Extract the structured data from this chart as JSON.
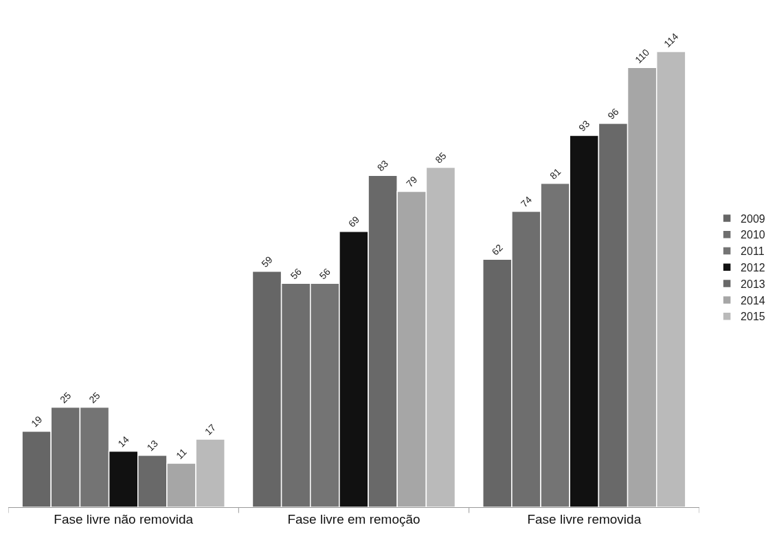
{
  "chart_data": {
    "type": "bar",
    "categories": [
      "Fase livre não removida",
      "Fase livre em remoção",
      "Fase livre removida"
    ],
    "series": [
      {
        "name": "2009",
        "color": "#666666",
        "values": [
          19,
          59,
          62
        ]
      },
      {
        "name": "2010",
        "color": "#6e6e6e",
        "values": [
          25,
          56,
          74
        ]
      },
      {
        "name": "2011",
        "color": "#747474",
        "values": [
          25,
          56,
          81
        ]
      },
      {
        "name": "2012",
        "color": "#111111",
        "values": [
          14,
          69,
          93
        ]
      },
      {
        "name": "2013",
        "color": "#696969",
        "values": [
          13,
          83,
          96
        ]
      },
      {
        "name": "2014",
        "color": "#a6a6a6",
        "values": [
          11,
          79,
          110
        ]
      },
      {
        "name": "2015",
        "color": "#bababa",
        "values": [
          17,
          85,
          114
        ]
      }
    ],
    "data_labels": true,
    "legend": "right",
    "grid": false
  }
}
